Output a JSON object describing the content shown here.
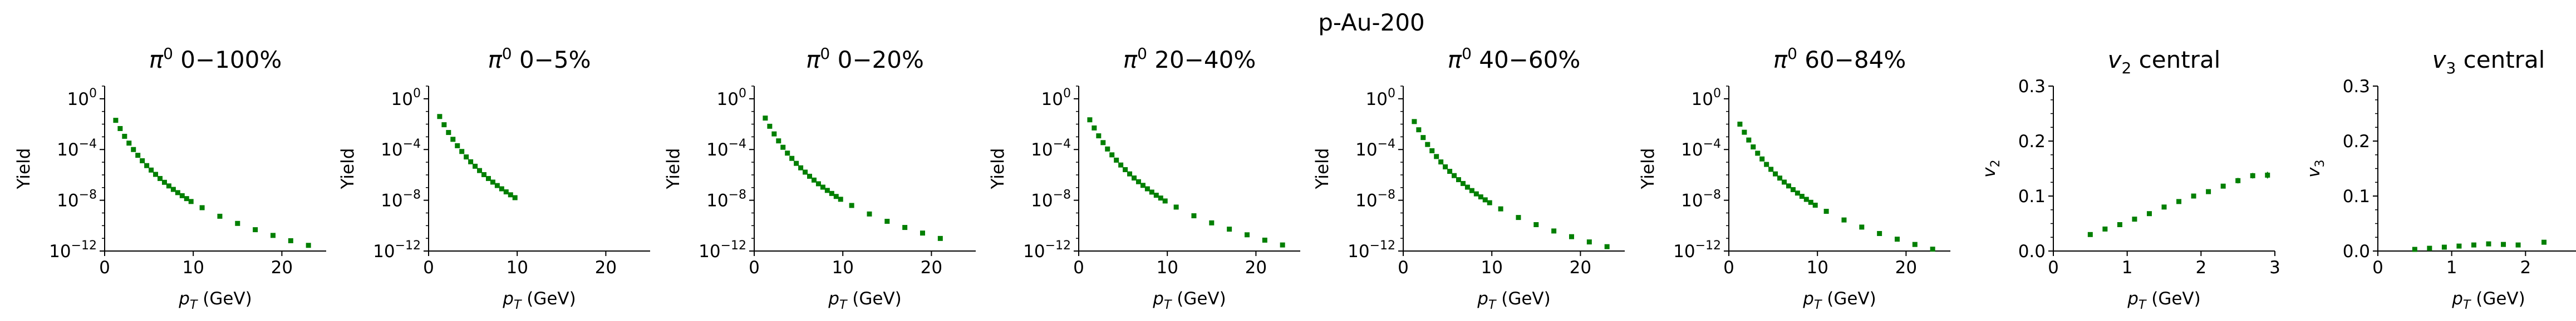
{
  "figure": {
    "suptitle": "p-Au-200"
  },
  "style": {
    "marker_color": "#007f00",
    "axis_color": "#000000"
  },
  "chart_data": [
    {
      "type": "scatter",
      "yscale": "log",
      "title_base": "π",
      "title_sup": "0",
      "title_rest": " 0−100%",
      "xlabel_base": "p",
      "xlabel_sub": "T",
      "xlabel_rest": " (GeV)",
      "ylabel": "Yield",
      "xlim": [
        0,
        25
      ],
      "ylim": [
        1e-12,
        10
      ],
      "xticks": [
        0,
        10,
        20
      ],
      "xtick_labels": [
        "0",
        "10",
        "20"
      ],
      "yticks": [
        1e-12,
        1e-08,
        0.0001,
        1
      ],
      "ytick_base": "10",
      "ytick_exps": [
        "−12",
        "−8",
        "−4",
        "0"
      ],
      "x": [
        1.25,
        1.75,
        2.25,
        2.75,
        3.25,
        3.75,
        4.25,
        4.75,
        5.25,
        5.75,
        6.25,
        6.75,
        7.25,
        7.75,
        8.25,
        8.75,
        9.25,
        9.75,
        11,
        13,
        15,
        17,
        19,
        21,
        23
      ],
      "y": [
        0.02,
        0.0045,
        0.0011,
        0.00032,
        0.0001,
        3.5e-05,
        1.3e-05,
        5.4e-06,
        2.4e-06,
        1.1e-06,
        5.2e-07,
        2.6e-07,
        1.35e-07,
        7.2e-08,
        4e-08,
        2.3e-08,
        1.35e-08,
        8e-09,
        2.6e-09,
        5.5e-10,
        1.5e-10,
        4.8e-11,
        1.7e-11,
        6.5e-12,
        2.8e-12
      ]
    },
    {
      "type": "scatter",
      "yscale": "log",
      "title_base": "π",
      "title_sup": "0",
      "title_rest": " 0−5%",
      "xlabel_base": "p",
      "xlabel_sub": "T",
      "xlabel_rest": " (GeV)",
      "ylabel": "Yield",
      "xlim": [
        0,
        25
      ],
      "ylim": [
        1e-12,
        10
      ],
      "xticks": [
        0,
        10,
        20
      ],
      "xtick_labels": [
        "0",
        "10",
        "20"
      ],
      "yticks": [
        1e-12,
        1e-08,
        0.0001,
        1
      ],
      "ytick_base": "10",
      "ytick_exps": [
        "−12",
        "−8",
        "−4",
        "0"
      ],
      "x": [
        1.25,
        1.75,
        2.25,
        2.75,
        3.25,
        3.75,
        4.25,
        4.75,
        5.25,
        5.75,
        6.25,
        6.75,
        7.25,
        7.75,
        8.25,
        8.75,
        9.25,
        9.75
      ],
      "y": [
        0.04,
        0.009,
        0.0022,
        0.00064,
        0.0002,
        7e-05,
        2.6e-05,
        1.08e-05,
        4.8e-06,
        2.2e-06,
        1.05e-06,
        5.2e-07,
        2.7e-07,
        1.45e-07,
        8e-08,
        4.6e-08,
        2.7e-08,
        1.6e-08
      ]
    },
    {
      "type": "scatter",
      "yscale": "log",
      "title_base": "π",
      "title_sup": "0",
      "title_rest": " 0−20%",
      "xlabel_base": "p",
      "xlabel_sub": "T",
      "xlabel_rest": " (GeV)",
      "ylabel": "Yield",
      "xlim": [
        0,
        25
      ],
      "ylim": [
        1e-12,
        10
      ],
      "xticks": [
        0,
        10,
        20
      ],
      "xtick_labels": [
        "0",
        "10",
        "20"
      ],
      "yticks": [
        1e-12,
        1e-08,
        0.0001,
        1
      ],
      "ytick_base": "10",
      "ytick_exps": [
        "−12",
        "−8",
        "−4",
        "0"
      ],
      "x": [
        1.25,
        1.75,
        2.25,
        2.75,
        3.25,
        3.75,
        4.25,
        4.75,
        5.25,
        5.75,
        6.25,
        6.75,
        7.25,
        7.75,
        8.25,
        8.75,
        9.25,
        9.75,
        11,
        13,
        15,
        17,
        19,
        21
      ],
      "y": [
        0.03,
        0.0068,
        0.0017,
        0.00048,
        0.00015,
        5.2e-05,
        2e-05,
        8.1e-06,
        3.6e-06,
        1.65e-06,
        7.8e-07,
        3.9e-07,
        2e-07,
        1.08e-07,
        6e-08,
        3.45e-08,
        2e-08,
        1.2e-08,
        3.9e-09,
        8.3e-10,
        2.2e-10,
        7.2e-11,
        2.6e-11,
        9.8e-12
      ]
    },
    {
      "type": "scatter",
      "yscale": "log",
      "title_base": "π",
      "title_sup": "0",
      "title_rest": " 20−40%",
      "xlabel_base": "p",
      "xlabel_sub": "T",
      "xlabel_rest": " (GeV)",
      "ylabel": "Yield",
      "xlim": [
        0,
        25
      ],
      "ylim": [
        1e-12,
        10
      ],
      "xticks": [
        0,
        10,
        20
      ],
      "xtick_labels": [
        "0",
        "10",
        "20"
      ],
      "yticks": [
        1e-12,
        1e-08,
        0.0001,
        1
      ],
      "ytick_base": "10",
      "ytick_exps": [
        "−12",
        "−8",
        "−4",
        "0"
      ],
      "x": [
        1.25,
        1.75,
        2.25,
        2.75,
        3.25,
        3.75,
        4.25,
        4.75,
        5.25,
        5.75,
        6.25,
        6.75,
        7.25,
        7.75,
        8.25,
        8.75,
        9.25,
        9.75,
        11,
        13,
        15,
        17,
        19,
        21,
        23
      ],
      "y": [
        0.022,
        0.005,
        0.0012,
        0.00035,
        0.00011,
        3.8e-05,
        1.45e-05,
        6e-06,
        2.6e-06,
        1.2e-06,
        5.7e-07,
        2.9e-07,
        1.5e-07,
        8e-08,
        4.4e-08,
        2.5e-08,
        1.5e-08,
        8.8e-09,
        2.9e-09,
        6e-10,
        1.65e-10,
        5.3e-11,
        1.9e-11,
        7.2e-12,
        3e-12
      ]
    },
    {
      "type": "scatter",
      "yscale": "log",
      "title_base": "π",
      "title_sup": "0",
      "title_rest": " 40−60%",
      "xlabel_base": "p",
      "xlabel_sub": "T",
      "xlabel_rest": " (GeV)",
      "ylabel": "Yield",
      "xlim": [
        0,
        25
      ],
      "ylim": [
        1e-12,
        10
      ],
      "xticks": [
        0,
        10,
        20
      ],
      "xtick_labels": [
        "0",
        "10",
        "20"
      ],
      "yticks": [
        1e-12,
        1e-08,
        0.0001,
        1
      ],
      "ytick_base": "10",
      "ytick_exps": [
        "−12",
        "−8",
        "−4",
        "0"
      ],
      "x": [
        1.25,
        1.75,
        2.25,
        2.75,
        3.25,
        3.75,
        4.25,
        4.75,
        5.25,
        5.75,
        6.25,
        6.75,
        7.25,
        7.75,
        8.25,
        8.75,
        9.25,
        9.75,
        11,
        13,
        15,
        17,
        19,
        21,
        23
      ],
      "y": [
        0.016,
        0.0036,
        0.00088,
        0.00025,
        8e-05,
        2.8e-05,
        1.05e-05,
        4.3e-06,
        1.9e-06,
        8.8e-07,
        4.2e-07,
        2.1e-07,
        1.08e-07,
        5.8e-08,
        3.2e-08,
        1.85e-08,
        1.08e-08,
        6.4e-09,
        2.1e-09,
        4.4e-10,
        1.2e-10,
        3.8e-11,
        1.35e-11,
        5.2e-12,
        2.2e-12
      ]
    },
    {
      "type": "scatter",
      "yscale": "log",
      "title_base": "π",
      "title_sup": "0",
      "title_rest": " 60−84%",
      "xlabel_base": "p",
      "xlabel_sub": "T",
      "xlabel_rest": " (GeV)",
      "ylabel": "Yield",
      "xlim": [
        0,
        25
      ],
      "ylim": [
        1e-12,
        10
      ],
      "xticks": [
        0,
        10,
        20
      ],
      "xtick_labels": [
        "0",
        "10",
        "20"
      ],
      "yticks": [
        1e-12,
        1e-08,
        0.0001,
        1
      ],
      "ytick_base": "10",
      "ytick_exps": [
        "−12",
        "−8",
        "−4",
        "0"
      ],
      "x": [
        1.25,
        1.75,
        2.25,
        2.75,
        3.25,
        3.75,
        4.25,
        4.75,
        5.25,
        5.75,
        6.25,
        6.75,
        7.25,
        7.75,
        8.25,
        8.75,
        9.25,
        9.75,
        11,
        13,
        15,
        17,
        19,
        21,
        23
      ],
      "y": [
        0.01,
        0.0023,
        0.00056,
        0.00016,
        5.1e-05,
        1.8e-05,
        6.7e-06,
        2.75e-06,
        1.2e-06,
        5.6e-07,
        2.7e-07,
        1.35e-07,
        6.9e-08,
        3.7e-08,
        2.05e-08,
        1.18e-08,
        6.9e-09,
        4.1e-09,
        1.35e-09,
        2.8e-10,
        7.7e-11,
        2.4e-11,
        8.6e-12,
        3.3e-12,
        1.4e-12
      ]
    },
    {
      "type": "scatter",
      "yscale": "linear",
      "title_base": "v",
      "title_sub": "2",
      "title_rest": " central",
      "xlabel_base": "p",
      "xlabel_sub": "T",
      "xlabel_rest": " (GeV)",
      "ylabel_base": "v",
      "ylabel_sub": "2",
      "xlim": [
        0,
        3
      ],
      "ylim": [
        0,
        0.3
      ],
      "xticks": [
        0,
        1,
        2,
        3
      ],
      "xtick_labels": [
        "0",
        "1",
        "2",
        "3"
      ],
      "yticks": [
        0,
        0.1,
        0.2,
        0.3
      ],
      "ytick_labels": [
        "0.0",
        "0.1",
        "0.2",
        "0.3"
      ],
      "x": [
        0.5,
        0.7,
        0.9,
        1.1,
        1.3,
        1.5,
        1.7,
        1.9,
        2.1,
        2.3,
        2.5,
        2.7,
        2.9
      ],
      "y": [
        0.03,
        0.04,
        0.048,
        0.058,
        0.068,
        0.08,
        0.09,
        0.1,
        0.108,
        0.118,
        0.128,
        0.137,
        0.138
      ],
      "yerr": [
        0.003,
        0.003,
        0.003,
        0.003,
        0.003,
        0.003,
        0.003,
        0.004,
        0.004,
        0.004,
        0.005,
        0.005,
        0.006
      ]
    },
    {
      "type": "scatter",
      "yscale": "linear",
      "title_base": "v",
      "title_sub": "3",
      "title_rest": " central",
      "xlabel_base": "p",
      "xlabel_sub": "T",
      "xlabel_rest": " (GeV)",
      "ylabel_base": "v",
      "ylabel_sub": "3",
      "xlim": [
        0,
        3
      ],
      "ylim": [
        0,
        0.3
      ],
      "xticks": [
        0,
        1,
        2,
        3
      ],
      "xtick_labels": [
        "0",
        "1",
        "2",
        "3"
      ],
      "yticks": [
        0,
        0.1,
        0.2,
        0.3
      ],
      "ytick_labels": [
        "0.0",
        "0.1",
        "0.2",
        "0.3"
      ],
      "x": [
        0.5,
        0.7,
        0.9,
        1.1,
        1.3,
        1.5,
        1.7,
        1.9,
        2.25,
        2.75
      ],
      "y": [
        0.003,
        0.005,
        0.007,
        0.009,
        0.011,
        0.013,
        0.012,
        0.011,
        0.016,
        0.02
      ],
      "yerr": [
        0.002,
        0.002,
        0.002,
        0.002,
        0.002,
        0.002,
        0.003,
        0.003,
        0.004,
        0.009
      ]
    }
  ]
}
